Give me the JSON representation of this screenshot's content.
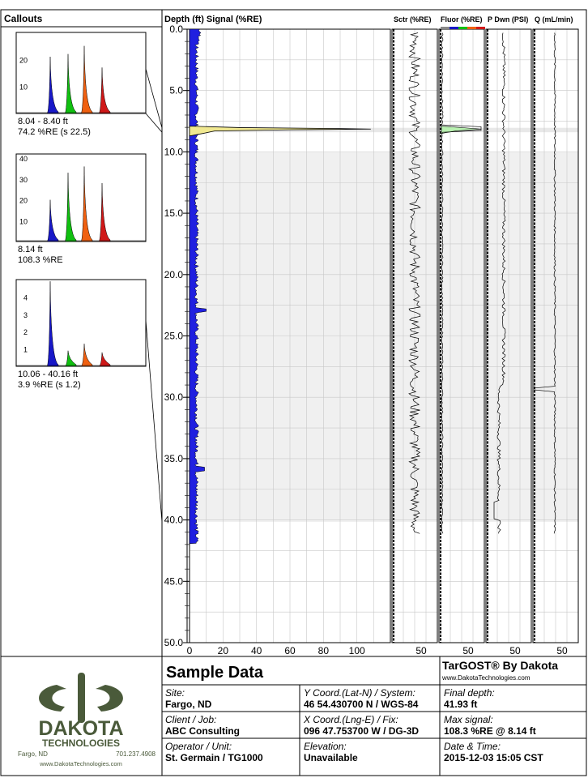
{
  "chart_data": {
    "type": "line",
    "main_track": {
      "header": "Depth (ft) Signal (%RE)",
      "ylim": [
        0,
        50
      ],
      "y_ticks": [
        "0.0",
        "5.0",
        "10.0",
        "15.0",
        "20.0",
        "25.0",
        "30.0",
        "35.0",
        "40.0",
        "45.0",
        "50.0"
      ],
      "xlim": [
        0,
        120
      ],
      "x_ticks": [
        "0",
        "20",
        "40",
        "60",
        "80",
        "100"
      ],
      "max_depth": 41.93,
      "peak": {
        "depth": 8.14,
        "value": 108.3
      },
      "shaded_interval": [
        10.06,
        40.16
      ],
      "highlight_interval": [
        8.04,
        8.4
      ],
      "baseline_signal": 4
    },
    "tracks": [
      {
        "name": "Sctr (%RE)",
        "tick": "50"
      },
      {
        "name": "Fluor (%RE)",
        "tick": "50"
      },
      {
        "name": "P Dwn (PSI)",
        "tick": "50"
      },
      {
        "name": "Q (mL/min)",
        "tick": "50"
      }
    ],
    "callouts_title": "Callouts",
    "callouts": [
      {
        "range": "8.04 - 8.40 ft",
        "signal": "74.2 %RE (s 22.5)",
        "y_ticks": [
          "20",
          "10"
        ],
        "peaks": [
          21,
          22,
          25,
          17
        ],
        "ymax": 30
      },
      {
        "range": "8.14 ft",
        "signal": "108.3 %RE",
        "y_ticks": [
          "40",
          "30",
          "20",
          "10"
        ],
        "peaks": [
          20,
          33,
          36,
          28
        ],
        "ymax": 42
      },
      {
        "range": "10.06 - 40.16 ft",
        "signal": "3.9 %RE (s 1.2)",
        "y_ticks": [
          "4",
          "3",
          "2",
          "1"
        ],
        "peaks": [
          4.9,
          0.9,
          1.3,
          0.8
        ],
        "ymax": 5
      }
    ],
    "series_colors": [
      "#1818c8",
      "#10c010",
      "#f06010",
      "#d01818"
    ]
  },
  "colors": {
    "signal_fill": "#2020e0",
    "peak_fill": "#f0e890",
    "fluor_fill": "#b8f0b0",
    "shade": "#f0f0f0",
    "logo_green": "#4a5a3a"
  },
  "footer": {
    "title": "Sample Data",
    "brand": "TarGOST® By Dakota",
    "website": "www.DakotaTechnologies.com",
    "logo": {
      "line1": "DAKOTA",
      "line2": "TECHNOLOGIES",
      "city": "Fargo, ND",
      "phone": "701.237.4908",
      "web": "www.DakotaTechnologies.com"
    },
    "site_label": "Site:",
    "site": "Fargo, ND",
    "client_label": "Client / Job:",
    "client": "ABC Consulting",
    "operator_label": "Operator / Unit:",
    "operator": "St. Germain / TG1000",
    "ycoord_label": "Y Coord.(Lat-N) / System:",
    "ycoord": "46 54.430700 N / WGS-84",
    "xcoord_label": "X Coord.(Lng-E) / Fix:",
    "xcoord": "096 47.753700 W / DG-3D",
    "elev_label": "Elevation:",
    "elev": "Unavailable",
    "depth_label": "Final depth:",
    "depth": "41.93 ft",
    "maxsig_label": "Max signal:",
    "maxsig": "108.3 %RE @ 8.14 ft",
    "date_label": "Date & Time:",
    "date": "2015-12-03 15:05 CST"
  }
}
